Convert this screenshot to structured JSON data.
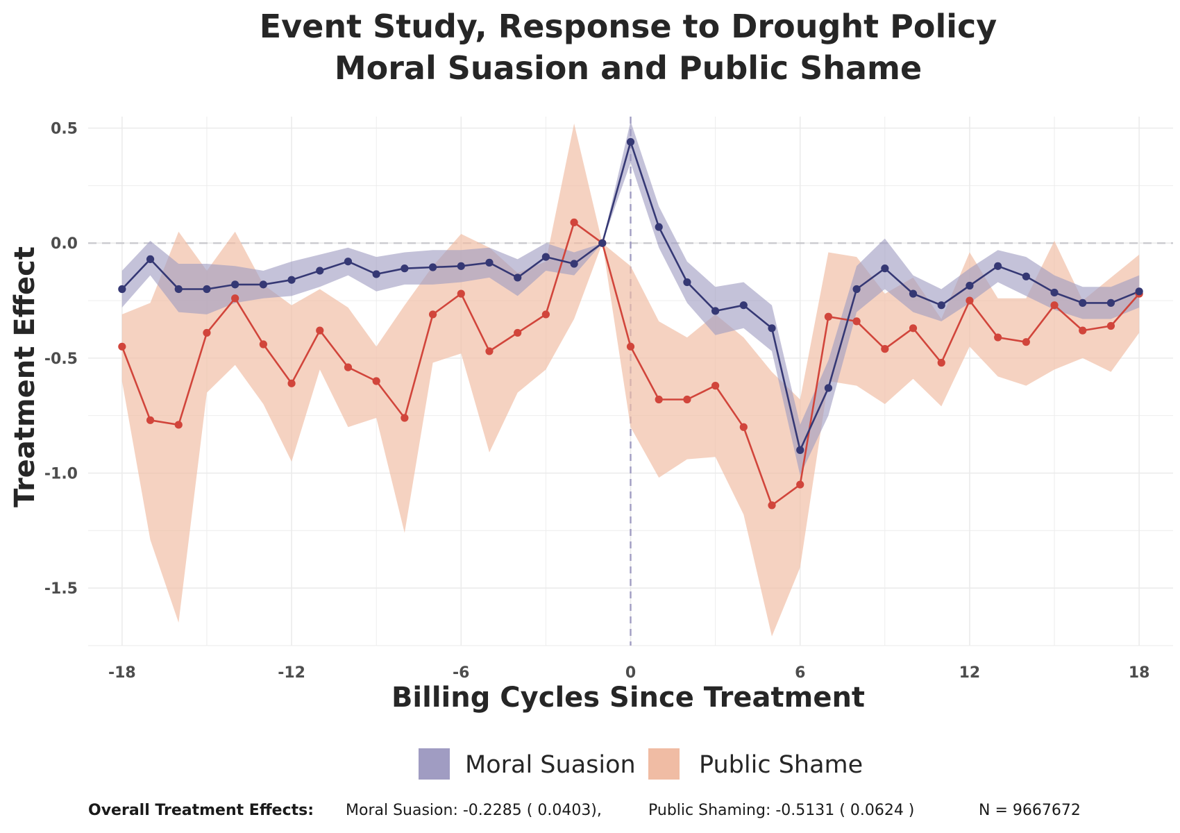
{
  "chart_data": {
    "type": "line",
    "title": "Event Study, Response to Drought Policy",
    "subtitle": "Moral Suasion and Public Shame",
    "xlabel": "Billing Cycles Since Treatment",
    "ylabel": "Treatment Effect",
    "xlim": [
      -19.2,
      19.2
    ],
    "ylim": [
      -1.75,
      0.55
    ],
    "x_ticks": [
      -18,
      -12,
      -6,
      0,
      6,
      12,
      18
    ],
    "x_tick_labels": [
      "-18",
      "-12",
      "-6",
      "0",
      "6",
      "12",
      "18"
    ],
    "y_ticks": [
      0.5,
      0.0,
      -0.5,
      -1.0,
      -1.5
    ],
    "y_tick_labels": [
      "0.5",
      "0.0",
      "-0.5",
      "-1.0",
      "-1.5"
    ],
    "grid": true,
    "reference_lines": {
      "y": 0,
      "x": 0
    },
    "legend_position": "bottom",
    "x": [
      -18,
      -17,
      -16,
      -15,
      -14,
      -13,
      -12,
      -11,
      -10,
      -9,
      -8,
      -7,
      -6,
      -5,
      -4,
      -3,
      -2,
      -1,
      0,
      1,
      2,
      3,
      4,
      5,
      6,
      7,
      8,
      9,
      10,
      11,
      12,
      13,
      14,
      15,
      16,
      17,
      18
    ],
    "series": [
      {
        "name": "Moral Suasion",
        "line_color": "#353874",
        "band_color": "#a09cc2",
        "values": [
          -0.2,
          -0.07,
          -0.2,
          -0.2,
          -0.18,
          -0.18,
          -0.16,
          -0.12,
          -0.08,
          -0.135,
          -0.11,
          -0.105,
          -0.1,
          -0.085,
          -0.15,
          -0.06,
          -0.09,
          0.0,
          0.44,
          0.07,
          -0.17,
          -0.295,
          -0.27,
          -0.37,
          -0.9,
          -0.63,
          -0.2,
          -0.11,
          -0.22,
          -0.27,
          -0.185,
          -0.1,
          -0.145,
          -0.215,
          -0.26,
          -0.26,
          -0.21
        ],
        "lower": [
          -0.28,
          -0.14,
          -0.3,
          -0.31,
          -0.26,
          -0.24,
          -0.23,
          -0.19,
          -0.14,
          -0.21,
          -0.18,
          -0.18,
          -0.17,
          -0.15,
          -0.23,
          -0.12,
          -0.14,
          0.0,
          0.35,
          -0.02,
          -0.26,
          -0.4,
          -0.37,
          -0.47,
          -1.01,
          -0.75,
          -0.3,
          -0.2,
          -0.3,
          -0.34,
          -0.26,
          -0.17,
          -0.23,
          -0.29,
          -0.33,
          -0.33,
          -0.28
        ],
        "upper": [
          -0.12,
          0.01,
          -0.09,
          -0.09,
          -0.1,
          -0.12,
          -0.08,
          -0.05,
          -0.02,
          -0.06,
          -0.04,
          -0.03,
          -0.03,
          -0.02,
          -0.07,
          0.0,
          -0.04,
          0.0,
          0.53,
          0.16,
          -0.08,
          -0.19,
          -0.17,
          -0.27,
          -0.79,
          -0.51,
          -0.1,
          0.02,
          -0.14,
          -0.2,
          -0.11,
          -0.03,
          -0.06,
          -0.14,
          -0.19,
          -0.19,
          -0.14
        ]
      },
      {
        "name": "Public Shame",
        "line_color": "#d1453b",
        "band_color": "#f0bca4",
        "values": [
          -0.45,
          -0.77,
          -0.79,
          -0.39,
          -0.24,
          -0.44,
          -0.61,
          -0.38,
          -0.54,
          -0.6,
          -0.76,
          -0.31,
          -0.22,
          -0.47,
          -0.39,
          -0.31,
          0.09,
          0.0,
          -0.45,
          -0.68,
          -0.68,
          -0.62,
          -0.8,
          -1.14,
          -1.05,
          -0.32,
          -0.34,
          -0.46,
          -0.37,
          -0.52,
          -0.25,
          -0.41,
          -0.43,
          -0.27,
          -0.38,
          -0.36,
          -0.22
        ],
        "lower": [
          -0.6,
          -1.29,
          -1.65,
          -0.65,
          -0.53,
          -0.7,
          -0.95,
          -0.55,
          -0.8,
          -0.76,
          -1.26,
          -0.52,
          -0.48,
          -0.91,
          -0.65,
          -0.55,
          -0.33,
          0.0,
          -0.8,
          -1.02,
          -0.94,
          -0.93,
          -1.18,
          -1.71,
          -1.41,
          -0.6,
          -0.62,
          -0.7,
          -0.59,
          -0.71,
          -0.45,
          -0.58,
          -0.62,
          -0.55,
          -0.5,
          -0.56,
          -0.39
        ],
        "upper": [
          -0.31,
          -0.26,
          0.05,
          -0.12,
          0.05,
          -0.18,
          -0.27,
          -0.2,
          -0.28,
          -0.45,
          -0.27,
          -0.1,
          0.04,
          -0.02,
          -0.13,
          -0.08,
          0.52,
          0.0,
          -0.1,
          -0.34,
          -0.41,
          -0.31,
          -0.41,
          -0.56,
          -0.68,
          -0.04,
          -0.06,
          -0.22,
          -0.15,
          -0.33,
          -0.04,
          -0.24,
          -0.24,
          0.01,
          -0.25,
          -0.15,
          -0.05
        ]
      }
    ]
  },
  "footer": {
    "label": "Overall Treatment Effects:",
    "moral": "Moral Suasion:  -0.2285   ( 0.0403),",
    "public": "Public Shaming:  -0.5131  ( 0.0624 )",
    "n": "N = 9667672"
  }
}
